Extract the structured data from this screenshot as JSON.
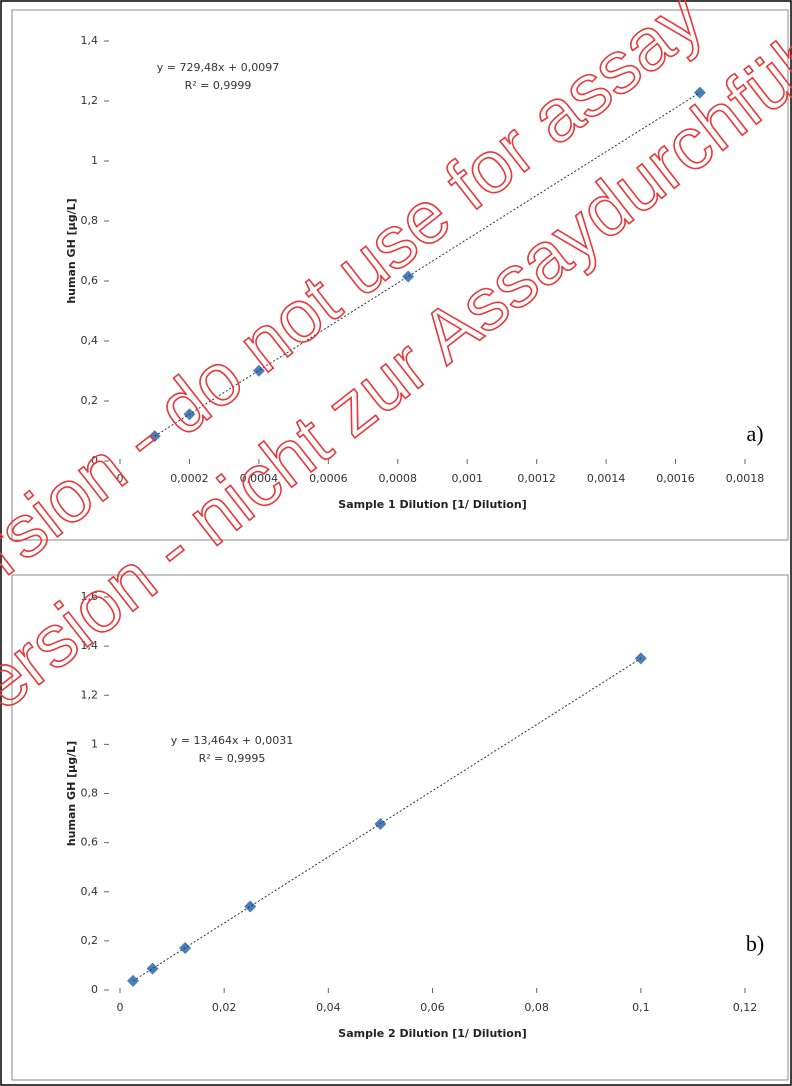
{
  "chart_data": [
    {
      "type": "scatter",
      "x_label": "Sample 1 Dilution [1/ Dilution]",
      "y_label": "human GH [µg/L]",
      "annotations": [
        "y = 729,48x + 0,0097",
        "R² = 0,9999",
        "a)"
      ],
      "x": [
        0.0001,
        0.0002,
        0.0004,
        0.00083,
        0.00167
      ],
      "series": [
        {
          "name": "Sample 1",
          "color": "#4a7ebb",
          "values": [
            0.083,
            0.156,
            0.301,
            0.615,
            1.228
          ]
        }
      ],
      "xlim": [
        0,
        0.0018
      ],
      "xticks": [
        0,
        {
          "value": 0.0002,
          "label": "0,0002"
        },
        {
          "value": 0.0004,
          "label": "0,0004"
        },
        {
          "value": 0.0006,
          "label": "0,0006"
        },
        {
          "value": 0.0008,
          "label": "0,0008"
        },
        {
          "value": 0.001,
          "label": "0,001"
        },
        {
          "value": 0.0012,
          "label": "0,0012"
        },
        {
          "value": 0.0014,
          "label": "0,0014"
        },
        {
          "value": 0.0016,
          "label": "0,0016"
        },
        {
          "value": 0.0018,
          "label": "0,0018"
        }
      ],
      "ylim": [
        0,
        1.4
      ],
      "yticks": [
        0,
        {
          "value": 0.2,
          "label": "0,2"
        },
        {
          "value": 0.4,
          "label": "0,4"
        },
        {
          "value": 0.6,
          "label": "0,6"
        },
        {
          "value": 0.8,
          "label": "0,8"
        },
        1,
        {
          "value": 1.2,
          "label": "1,2"
        },
        {
          "value": 1.4,
          "label": "1,4"
        }
      ],
      "trendline": true
    },
    {
      "type": "scatter",
      "x_label": "Sample 2 Dilution [1/ Dilution]",
      "y_label": "human GH [µg/L]",
      "annotations": [
        "y = 13,464x + 0,0031",
        "R² = 0,9995",
        "b)"
      ],
      "x": [
        0.0025,
        0.00625,
        0.0125,
        0.025,
        0.05,
        0.1
      ],
      "series": [
        {
          "name": "Sample 2",
          "color": "#4a7ebb",
          "values": [
            0.037,
            0.087,
            0.171,
            0.34,
            0.676,
            1.35
          ]
        }
      ],
      "xlim": [
        0,
        0.12
      ],
      "xticks": [
        0,
        {
          "value": 0.02,
          "label": "0,02"
        },
        {
          "value": 0.04,
          "label": "0,04"
        },
        {
          "value": 0.06,
          "label": "0,06"
        },
        {
          "value": 0.08,
          "label": "0,08"
        },
        {
          "value": 0.1,
          "label": "0,1"
        },
        {
          "value": 0.12,
          "label": "0,12"
        }
      ],
      "ylim": [
        0,
        1.6
      ],
      "yticks": [
        0,
        {
          "value": 0.2,
          "label": "0,2"
        },
        {
          "value": 0.4,
          "label": "0,4"
        },
        {
          "value": 0.6,
          "label": "0,6"
        },
        {
          "value": 0.8,
          "label": "0,8"
        },
        1,
        {
          "value": 1.2,
          "label": "1,2"
        },
        {
          "value": 1.4,
          "label": "1,4"
        },
        {
          "value": 1.6,
          "label": "1,6"
        }
      ],
      "trendline": true
    }
  ],
  "watermark": [
    "Online Version - do not use for assay",
    "Online Version - nicht zur Assaydurchführung"
  ]
}
